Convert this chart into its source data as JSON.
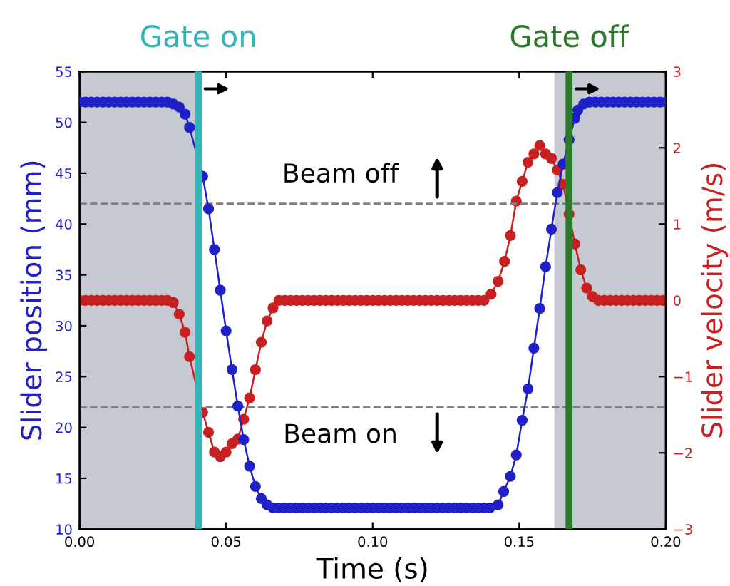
{
  "chart_data": {
    "type": "line",
    "xlabel": "Time (s)",
    "ylabel": "Slider position (mm)",
    "y2label": "Slider velocity (m/s)",
    "xlim": [
      0,
      0.2
    ],
    "xticks": [
      {
        "value": 0,
        "label": "0.00"
      },
      {
        "value": 0.05,
        "label": "0.05"
      },
      {
        "value": 0.1,
        "label": "0.10"
      },
      {
        "value": 0.15,
        "label": "0.15"
      },
      {
        "value": 0.2,
        "label": "0.20"
      }
    ],
    "ylim": [
      10,
      55
    ],
    "yticks": [
      10,
      15,
      20,
      25,
      30,
      35,
      40,
      45,
      50,
      55
    ],
    "y2lim": [
      -3,
      3
    ],
    "y2ticks": [
      {
        "value": -3,
        "label": "−3"
      },
      {
        "value": -2,
        "label": "−2"
      },
      {
        "value": -1,
        "label": "−1"
      },
      0,
      1,
      2,
      3
    ],
    "grid": false,
    "marker": "circle",
    "line_style": "solid",
    "series": [
      {
        "color": "#2020c8",
        "axis": "y",
        "x": [
          0,
          0.002,
          0.004,
          0.006,
          0.008,
          0.01,
          0.012,
          0.014,
          0.016,
          0.018,
          0.02,
          0.022,
          0.024,
          0.026,
          0.028,
          0.03,
          0.032,
          0.034,
          0.036,
          0.0375,
          0.042,
          0.044,
          0.046,
          0.048,
          0.05,
          0.052,
          0.054,
          0.056,
          0.058,
          0.06,
          0.062,
          0.064,
          0.066,
          0.068,
          0.07,
          0.072,
          0.074,
          0.076,
          0.078,
          0.08,
          0.082,
          0.084,
          0.086,
          0.088,
          0.09,
          0.092,
          0.094,
          0.096,
          0.098,
          0.1,
          0.102,
          0.104,
          0.106,
          0.108,
          0.11,
          0.112,
          0.114,
          0.116,
          0.118,
          0.12,
          0.122,
          0.124,
          0.126,
          0.128,
          0.13,
          0.132,
          0.134,
          0.136,
          0.138,
          0.14,
          0.1428,
          0.1447,
          0.147,
          0.149,
          0.151,
          0.153,
          0.155,
          0.157,
          0.159,
          0.161,
          0.163,
          0.165,
          0.167,
          0.169,
          0.17,
          0.172,
          0.174,
          0.176,
          0.178,
          0.18,
          0.182,
          0.184,
          0.186,
          0.188,
          0.19,
          0.192,
          0.194,
          0.196,
          0.198,
          0.2
        ],
        "values": [
          52,
          52,
          52,
          52,
          52,
          52,
          52,
          52,
          52,
          52,
          52,
          52,
          52,
          52,
          52,
          52,
          51.8,
          51.5,
          50.8,
          49.5,
          44.7,
          41.5,
          37.5,
          33.5,
          29.5,
          25.7,
          22.1,
          18.8,
          16.2,
          14.2,
          13.0,
          12.4,
          12.1,
          12.1,
          12.1,
          12.1,
          12.1,
          12.1,
          12.1,
          12.1,
          12.1,
          12.1,
          12.1,
          12.1,
          12.1,
          12.1,
          12.1,
          12.1,
          12.1,
          12.1,
          12.1,
          12.1,
          12.1,
          12.1,
          12.1,
          12.1,
          12.1,
          12.1,
          12.1,
          12.1,
          12.1,
          12.1,
          12.1,
          12.1,
          12.1,
          12.1,
          12.1,
          12.1,
          12.1,
          12.1,
          12.4,
          13.7,
          15.2,
          17.3,
          20.7,
          23.8,
          27.8,
          31.7,
          35.8,
          39.5,
          43.1,
          45.9,
          48.3,
          50.4,
          51.2,
          51.8,
          52,
          52,
          52,
          52,
          52,
          52,
          52,
          52,
          52,
          52,
          52,
          52,
          52,
          52
        ]
      },
      {
        "color": "#c82020",
        "axis": "y2",
        "x": [
          0,
          0.002,
          0.004,
          0.006,
          0.008,
          0.01,
          0.012,
          0.014,
          0.016,
          0.018,
          0.02,
          0.022,
          0.024,
          0.026,
          0.028,
          0.03,
          0.032,
          0.034,
          0.036,
          0.0375,
          0.042,
          0.044,
          0.046,
          0.048,
          0.05,
          0.052,
          0.054,
          0.056,
          0.058,
          0.06,
          0.062,
          0.064,
          0.066,
          0.068,
          0.07,
          0.072,
          0.074,
          0.076,
          0.078,
          0.08,
          0.082,
          0.084,
          0.086,
          0.088,
          0.09,
          0.092,
          0.094,
          0.096,
          0.098,
          0.1,
          0.102,
          0.104,
          0.106,
          0.108,
          0.11,
          0.112,
          0.114,
          0.116,
          0.118,
          0.12,
          0.122,
          0.124,
          0.126,
          0.128,
          0.13,
          0.132,
          0.134,
          0.136,
          0.138,
          0.1404,
          0.1428,
          0.145,
          0.147,
          0.149,
          0.151,
          0.153,
          0.155,
          0.157,
          0.159,
          0.161,
          0.163,
          0.165,
          0.167,
          0.169,
          0.171,
          0.173,
          0.175,
          0.177,
          0.179,
          0.181,
          0.183,
          0.185,
          0.187,
          0.189,
          0.191,
          0.193,
          0.195,
          0.197,
          0.199
        ],
        "values": [
          0,
          0,
          0,
          0,
          0,
          0,
          0,
          0,
          0,
          0,
          0,
          0,
          0,
          0,
          0,
          0,
          -0.03,
          -0.18,
          -0.42,
          -0.74,
          -1.47,
          -1.73,
          -1.99,
          -2.05,
          -1.99,
          -1.88,
          -1.82,
          -1.56,
          -1.28,
          -0.91,
          -0.55,
          -0.27,
          -0.1,
          0,
          0,
          0,
          0,
          0,
          0,
          0,
          0,
          0,
          0,
          0,
          0,
          0,
          0,
          0,
          0,
          0,
          0,
          0,
          0,
          0,
          0,
          0,
          0,
          0,
          0,
          0,
          0,
          0,
          0,
          0,
          0,
          0,
          0,
          0,
          0,
          0.08,
          0.25,
          0.51,
          0.85,
          1.3,
          1.56,
          1.81,
          1.92,
          2.03,
          1.92,
          1.86,
          1.71,
          1.52,
          1.13,
          0.74,
          0.4,
          0.16,
          0.05,
          0,
          0,
          0,
          0,
          0,
          0,
          0,
          0,
          0,
          0,
          0,
          0
        ]
      }
    ],
    "bands": [
      {
        "axis": "x",
        "from": 0,
        "to": 0.0395,
        "color": "#c5cad2"
      },
      {
        "axis": "x",
        "from": 0.162,
        "to": 0.2,
        "color": "#c5cad2"
      }
    ],
    "ref_lines": [
      {
        "axis": "y",
        "value": 42,
        "label": "Beam off",
        "color": "#808080",
        "line_style": "dashed"
      },
      {
        "axis": "y",
        "value": 22,
        "label": "Beam on",
        "color": "#808080",
        "line_style": "dashed"
      },
      {
        "axis": "x",
        "value": 0.0405,
        "label": "Gate on",
        "color": "#33b5b8",
        "line_style": "solid"
      },
      {
        "axis": "x",
        "value": 0.167,
        "label": "Gate off",
        "color": "#2a7a2a",
        "line_style": "solid"
      }
    ]
  }
}
